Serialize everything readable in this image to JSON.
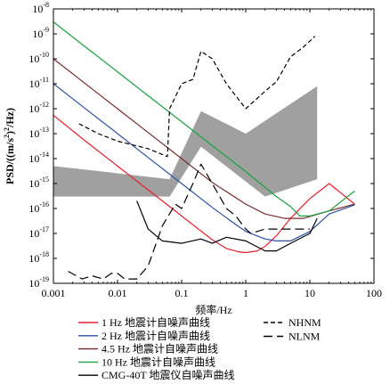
{
  "chart_data": {
    "type": "line",
    "xlabel": "频率/Hz",
    "ylabel_parts": [
      "PSD/((m/s",
      "2",
      ")",
      "2",
      "/Hz)"
    ],
    "x_scale": "log",
    "y_scale": "log",
    "xlim": [
      0.001,
      100
    ],
    "ylim": [
      1e-19,
      1e-08
    ],
    "x_ticks": [
      {
        "value": 0.001,
        "label": "0.001"
      },
      {
        "value": 0.01,
        "label": "0.01"
      },
      {
        "value": 0.1,
        "label": "0.1"
      },
      {
        "value": 1,
        "label": "1"
      },
      {
        "value": 10,
        "label": "10"
      },
      {
        "value": 100,
        "label": "100"
      }
    ],
    "y_ticks": [
      {
        "value": 1e-08,
        "base": "10",
        "exp": "-8"
      },
      {
        "value": 1e-09,
        "base": "10",
        "exp": "-9"
      },
      {
        "value": 1e-10,
        "base": "10",
        "exp": "-10"
      },
      {
        "value": 1e-11,
        "base": "10",
        "exp": "-11"
      },
      {
        "value": 1e-12,
        "base": "10",
        "exp": "-12"
      },
      {
        "value": 1e-13,
        "base": "10",
        "exp": "-13"
      },
      {
        "value": 1e-14,
        "base": "10",
        "exp": "-14"
      },
      {
        "value": 1e-15,
        "base": "10",
        "exp": "-15"
      },
      {
        "value": 1e-16,
        "base": "10",
        "exp": "-16"
      },
      {
        "value": 1e-17,
        "base": "10",
        "exp": "-17"
      },
      {
        "value": 1e-18,
        "base": "10",
        "exp": "-18"
      },
      {
        "value": 1e-19,
        "base": "10",
        "exp": "-19"
      }
    ],
    "band": {
      "color": "#a0a0a0",
      "upper": [
        [
          0.001,
          5e-15
        ],
        [
          0.065,
          1.5e-15
        ],
        [
          0.2,
          8e-13
        ],
        [
          1.0,
          1e-13
        ],
        [
          13,
          8e-12
        ]
      ],
      "lower": [
        [
          0.001,
          3e-16
        ],
        [
          0.065,
          3e-16
        ],
        [
          0.2,
          3e-14
        ],
        [
          2.0,
          3e-16
        ],
        [
          13,
          1.5e-15
        ]
      ]
    },
    "series": [
      {
        "name": "1 Hz 地震计自噪声曲线",
        "color": "#e8202a",
        "dash": "",
        "points": [
          [
            0.001,
            5.5e-13
          ],
          [
            0.003,
            5.6e-14
          ],
          [
            0.01,
            5e-15
          ],
          [
            0.03,
            5.6e-16
          ],
          [
            0.1,
            5e-17
          ],
          [
            0.3,
            5.6e-18
          ],
          [
            0.5,
            2.5e-18
          ],
          [
            0.8,
            1.8e-18
          ],
          [
            1.0,
            1.7e-18
          ],
          [
            1.5,
            2e-18
          ],
          [
            2.0,
            3e-18
          ],
          [
            3.0,
            8e-18
          ],
          [
            5.0,
            4e-17
          ],
          [
            10.0,
            2.5e-16
          ],
          [
            20.0,
            1e-15
          ],
          [
            50.0,
            1.5e-16
          ]
        ]
      },
      {
        "name": "2 Hz 地震计自噪声曲线",
        "color": "#2b50a8",
        "dash": "",
        "points": [
          [
            0.001,
            1e-11
          ],
          [
            0.003,
            1.1e-12
          ],
          [
            0.01,
            1e-13
          ],
          [
            0.03,
            1.1e-14
          ],
          [
            0.1,
            1e-15
          ],
          [
            0.3,
            1.1e-16
          ],
          [
            0.6,
            3e-17
          ],
          [
            1.0,
            1.2e-17
          ],
          [
            2.0,
            6e-18
          ],
          [
            3.0,
            5e-18
          ],
          [
            5.0,
            5e-18
          ],
          [
            10.0,
            1.2e-17
          ],
          [
            20.0,
            6e-17
          ],
          [
            50.0,
            1.4e-16
          ]
        ]
      },
      {
        "name": "4.5 Hz 地震计自噪声曲线",
        "color": "#7a2a2a",
        "dash": "",
        "points": [
          [
            0.001,
            1e-10
          ],
          [
            0.003,
            1.1e-11
          ],
          [
            0.01,
            1e-12
          ],
          [
            0.03,
            1.1e-13
          ],
          [
            0.1,
            1e-14
          ],
          [
            0.3,
            1.1e-15
          ],
          [
            1.0,
            1.5e-16
          ],
          [
            2.0,
            6e-17
          ],
          [
            4.0,
            4e-17
          ],
          [
            8.0,
            4e-17
          ],
          [
            20.0,
            8e-17
          ],
          [
            50.0,
            1.5e-16
          ]
        ]
      },
      {
        "name": "10 Hz 地震计自噪声曲线",
        "color": "#1ba33e",
        "dash": "",
        "points": [
          [
            0.001,
            3e-09
          ],
          [
            0.003,
            3.3e-10
          ],
          [
            0.01,
            3e-11
          ],
          [
            0.03,
            3.3e-12
          ],
          [
            0.1,
            3e-13
          ],
          [
            0.3,
            3.3e-14
          ],
          [
            1.0,
            3e-15
          ],
          [
            3.0,
            3e-16
          ],
          [
            5.0,
            1.2e-16
          ],
          [
            7.0,
            5e-17
          ],
          [
            10.0,
            5e-17
          ],
          [
            20.0,
            8e-17
          ],
          [
            50.0,
            5e-16
          ]
        ]
      },
      {
        "name": "CMG-40T 地震仪自噪声曲线",
        "color": "#000000",
        "dash": "",
        "points": [
          [
            0.02,
            2e-16
          ],
          [
            0.03,
            1.5e-17
          ],
          [
            0.05,
            5e-18
          ],
          [
            0.1,
            4e-18
          ],
          [
            0.2,
            6e-18
          ],
          [
            0.3,
            4e-18
          ],
          [
            0.5,
            7e-18
          ],
          [
            1.0,
            5e-18
          ],
          [
            2.0,
            2e-18
          ],
          [
            3.0,
            2e-18
          ],
          [
            5.0,
            4e-18
          ],
          [
            10.0,
            1e-17
          ],
          [
            13.0,
            4e-17
          ]
        ]
      },
      {
        "name": "NHNM",
        "color": "#000000",
        "dash": "5,3",
        "points": [
          [
            0.0025,
            2.5e-13
          ],
          [
            0.005,
            1e-13
          ],
          [
            0.01,
            5e-14
          ],
          [
            0.03,
            2.5e-14
          ],
          [
            0.06,
            1.2e-14
          ],
          [
            0.065,
            1e-12
          ],
          [
            0.1,
            1e-11
          ],
          [
            0.15,
            1.5e-11
          ],
          [
            0.2,
            2e-10
          ],
          [
            0.3,
            1e-10
          ],
          [
            0.5,
            1e-11
          ],
          [
            1.0,
            1e-12
          ],
          [
            2.0,
            5e-12
          ],
          [
            3.0,
            1.2e-11
          ],
          [
            5.0,
            1.2e-10
          ],
          [
            8.0,
            3e-10
          ],
          [
            12.0,
            8e-10
          ]
        ]
      },
      {
        "name": "NLNM",
        "color": "#000000",
        "dash": "10,5",
        "points": [
          [
            0.0017,
            3e-19
          ],
          [
            0.0028,
            1.5e-19
          ],
          [
            0.004,
            2e-19
          ],
          [
            0.006,
            1.5e-19
          ],
          [
            0.008,
            2.5e-19
          ],
          [
            0.01,
            2.5e-19
          ],
          [
            0.013,
            1.5e-19
          ],
          [
            0.02,
            1.5e-19
          ],
          [
            0.03,
            5e-19
          ],
          [
            0.05,
            2e-17
          ],
          [
            0.08,
            1.5e-16
          ],
          [
            0.1,
            1e-16
          ],
          [
            0.15,
            1e-15
          ],
          [
            0.2,
            6e-15
          ],
          [
            0.3,
            1e-15
          ],
          [
            0.5,
            1e-16
          ],
          [
            0.7,
            5e-17
          ],
          [
            1.0,
            1.5e-17
          ],
          [
            1.2,
            1e-17
          ],
          [
            2.0,
            1.5e-17
          ],
          [
            5.0,
            1.5e-17
          ],
          [
            10.0,
            1.5e-17
          ]
        ]
      }
    ]
  }
}
